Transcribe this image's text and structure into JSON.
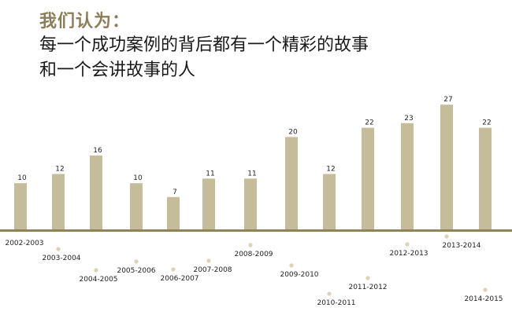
{
  "heading": {
    "title": "我们认为：",
    "line1": "每一个成功案例的背后都有一个精彩的故事",
    "line2": "和一个会讲故事的人"
  },
  "colors": {
    "bar": "#c5bd9a",
    "axis": "#8f8459",
    "dot": "#d9d3b8",
    "title": "#8a7d57"
  },
  "chart_data": {
    "type": "bar",
    "categories": [
      "2002-2003",
      "2003-2004",
      "2004-2005",
      "2005-2006",
      "2006-2007",
      "2007-2008",
      "2008-2009",
      "2009-2010",
      "2010-2011",
      "2011-2012",
      "2012-2013",
      "2013-2014",
      "2014-2015"
    ],
    "values": [
      10,
      12,
      16,
      10,
      7,
      11,
      11,
      20,
      12,
      22,
      23,
      27,
      22
    ],
    "title": "",
    "xlabel": "",
    "ylabel": "",
    "grid": false,
    "legend": "none"
  }
}
